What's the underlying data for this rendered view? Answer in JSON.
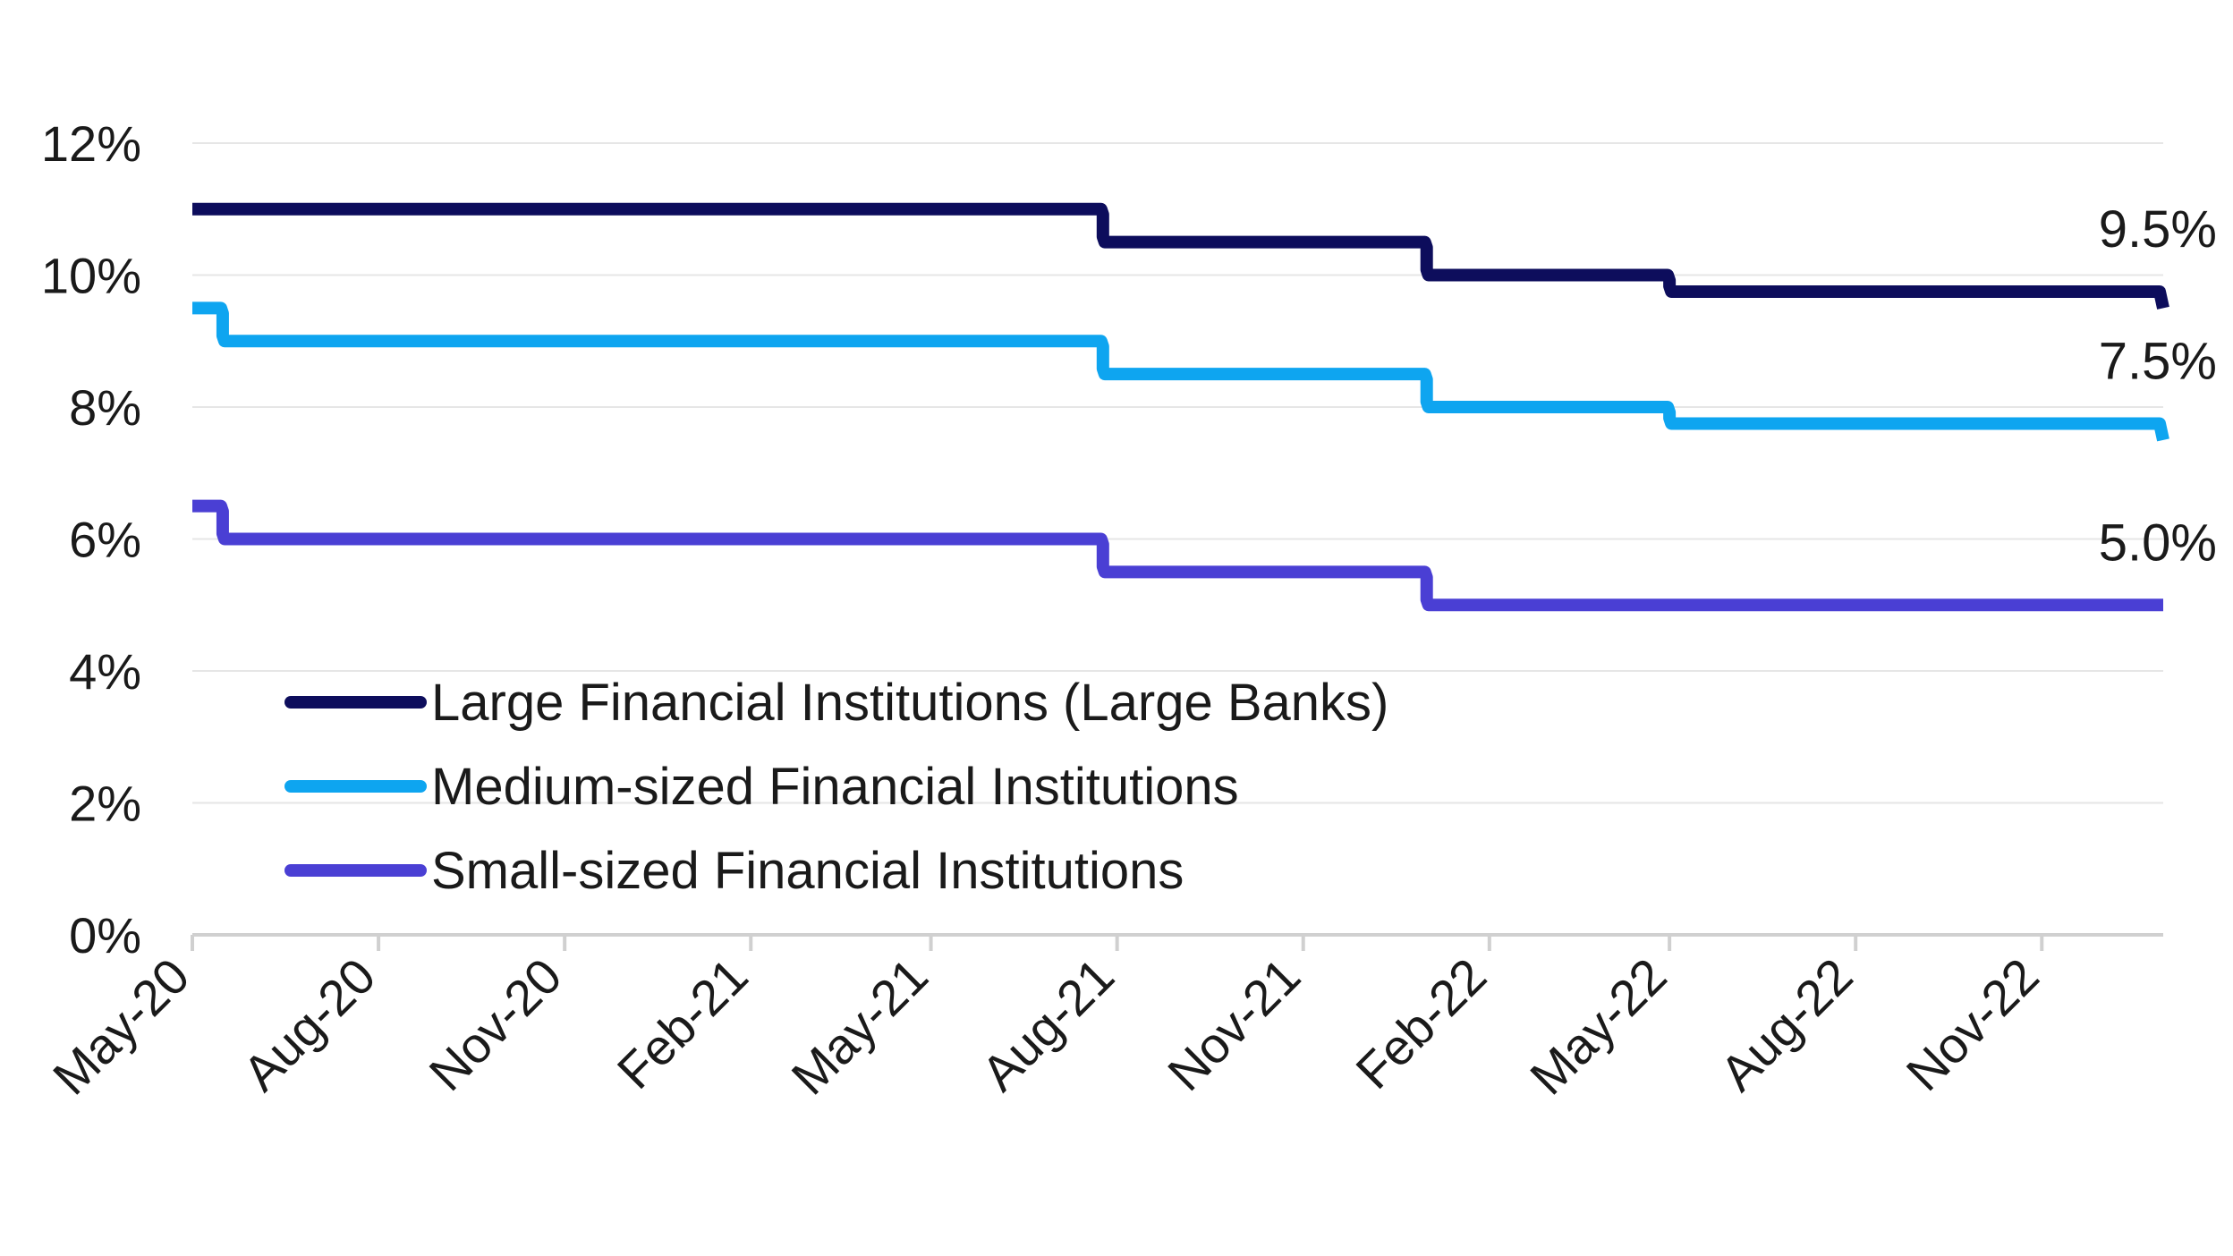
{
  "chart_data": {
    "type": "line",
    "line_style": "step",
    "ylim": [
      0,
      12
    ],
    "y_ticks": [
      {
        "value": 0,
        "label": "0%"
      },
      {
        "value": 2,
        "label": "2%"
      },
      {
        "value": 4,
        "label": "4%"
      },
      {
        "value": 6,
        "label": "6%"
      },
      {
        "value": 8,
        "label": "8%"
      },
      {
        "value": 10,
        "label": "10%"
      },
      {
        "value": 12,
        "label": "12%"
      }
    ],
    "x_ticks": [
      "May-20",
      "Aug-20",
      "Nov-20",
      "Feb-21",
      "May-21",
      "Aug-21",
      "Nov-21",
      "Feb-22",
      "May-22",
      "Aug-22",
      "Nov-22"
    ],
    "x_range": [
      "2020-05-01",
      "2022-12-31"
    ],
    "grid": true,
    "legend_position": "bottom-left",
    "series": [
      {
        "name": "Large Financial Institutions (Large Banks)",
        "color": "#0d0d5c",
        "end_label": "9.5%",
        "points": [
          {
            "x": "2020-05-01",
            "y": 11.0
          },
          {
            "x": "2021-07-25",
            "y": 10.5
          },
          {
            "x": "2022-01-01",
            "y": 10.0
          },
          {
            "x": "2022-05-01",
            "y": 9.75
          },
          {
            "x": "2022-12-31",
            "y": 9.5
          }
        ]
      },
      {
        "name": "Medium-sized Financial Institutions",
        "color": "#0ea5f0",
        "end_label": "7.5%",
        "points": [
          {
            "x": "2020-05-01",
            "y": 9.5
          },
          {
            "x": "2020-05-16",
            "y": 9.0
          },
          {
            "x": "2021-07-25",
            "y": 8.5
          },
          {
            "x": "2022-01-01",
            "y": 8.0
          },
          {
            "x": "2022-05-01",
            "y": 7.75
          },
          {
            "x": "2022-12-31",
            "y": 7.5
          }
        ]
      },
      {
        "name": "Small-sized Financial Institutions",
        "color": "#4a3fd4",
        "end_label": "5.0%",
        "points": [
          {
            "x": "2020-05-01",
            "y": 6.5
          },
          {
            "x": "2020-05-16",
            "y": 6.0
          },
          {
            "x": "2021-07-25",
            "y": 5.5
          },
          {
            "x": "2022-01-01",
            "y": 5.0
          },
          {
            "x": "2022-12-31",
            "y": 5.0
          }
        ]
      }
    ]
  }
}
